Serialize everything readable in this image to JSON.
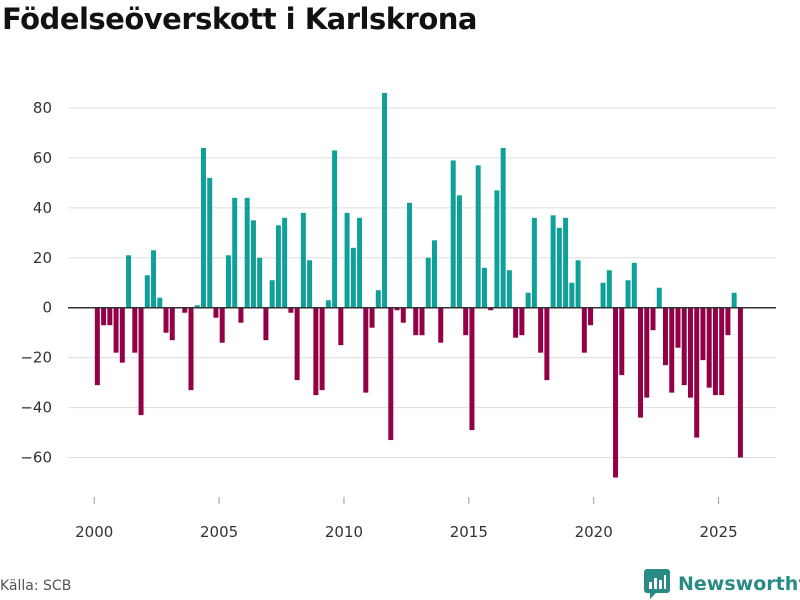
{
  "title": "Födelseöverskott i Karlskrona",
  "source": "Källa: SCB",
  "brand": {
    "name": "Newsworthy"
  },
  "colors": {
    "positive": "#0fa09a",
    "negative": "#920046",
    "grid": "#dddddd",
    "zero": "#333333",
    "axis_text": "#333333",
    "brand": "#2a8a86"
  },
  "chart_data": {
    "type": "bar",
    "title": "Födelseöverskott i Karlskrona",
    "xlabel": "",
    "ylabel": "",
    "ylim": [
      -75,
      92
    ],
    "yticks": [
      80,
      60,
      40,
      20,
      0,
      -20,
      -40,
      -60
    ],
    "ytick_labels": [
      "80",
      "60",
      "40",
      "20",
      "0",
      "−20",
      "−40",
      "−60"
    ],
    "xlim": [
      1998.95,
      2027.3
    ],
    "xticks": [
      2000,
      2005,
      2010,
      2015,
      2020,
      2025
    ],
    "xtick_labels": [
      "2000",
      "2005",
      "2010",
      "2015",
      "2020",
      "2025"
    ],
    "bar_width": 0.2,
    "x_start": 2000.125,
    "x_step": 0.25,
    "values": [
      -31,
      -7,
      -7,
      -18,
      -22,
      21,
      -18,
      -43,
      13,
      23,
      4,
      -10,
      -13,
      0,
      -2,
      -33,
      1,
      64,
      52,
      -4,
      -14,
      21,
      44,
      -6,
      44,
      35,
      20,
      -13,
      11,
      33,
      36,
      -2,
      -29,
      38,
      19,
      -35,
      -33,
      3,
      63,
      -15,
      38,
      24,
      36,
      -34,
      -8,
      7,
      86,
      -53,
      -1,
      -6,
      42,
      -11,
      -11,
      20,
      27,
      -14,
      0,
      59,
      45,
      -11,
      -49,
      57,
      16,
      -1,
      47,
      64,
      15,
      -12,
      -11,
      6,
      36,
      -18,
      -29,
      37,
      32,
      36,
      10,
      19,
      -18,
      -7,
      0,
      10,
      15,
      -68,
      -27,
      11,
      18,
      -44,
      -36,
      -9,
      8,
      -23,
      -34,
      -16,
      -31,
      -36,
      -52,
      -21,
      -32,
      -35,
      -35,
      -11,
      6,
      -60
    ]
  }
}
